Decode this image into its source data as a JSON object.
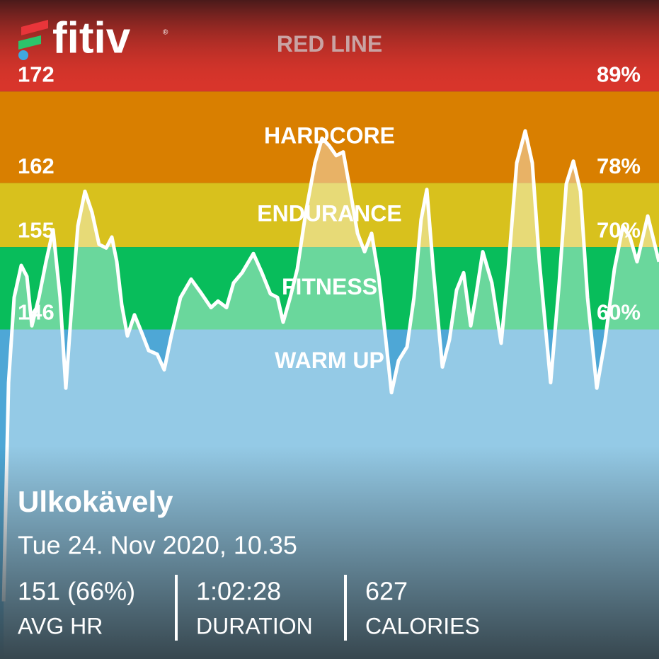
{
  "logo": {
    "text": "fitiv",
    "mark": "®"
  },
  "workout": {
    "title": "Ulkokävely",
    "date": "Tue 24. Nov 2020, 10.35",
    "stats": [
      {
        "value": "151 (66%)",
        "label": "AVG HR"
      },
      {
        "value": "1:02:28",
        "label": "DURATION"
      },
      {
        "value": "627",
        "label": "CALORIES"
      }
    ]
  },
  "chart_data": {
    "type": "line",
    "ylim": [
      110,
      182
    ],
    "xlim": [
      0,
      62.47
    ],
    "zones": [
      {
        "name": "RED LINE",
        "min": 172,
        "percent": {
          "value": 89,
          "label": "89%"
        },
        "color": "#d8352b"
      },
      {
        "name": "HARDCORE",
        "min": 162,
        "percent": {
          "value": 78,
          "label": "78%"
        },
        "color": "#d97f00"
      },
      {
        "name": "ENDURANCE",
        "min": 155,
        "percent": {
          "value": 70,
          "label": "70%"
        },
        "color": "#d8c11d"
      },
      {
        "name": "FITNESS",
        "min": 146,
        "percent": {
          "value": 60,
          "label": "60%"
        },
        "color": "#08bd5b"
      },
      {
        "name": "WARM UP",
        "color": "#4ea7d6"
      }
    ],
    "series": [
      {
        "color": "#ffffff",
        "x": [
          0.34,
          0.81,
          1.34,
          2.01,
          2.55,
          3.02,
          3.69,
          4.36,
          5.03,
          5.7,
          6.24,
          6.71,
          7.38,
          8.05,
          8.72,
          9.39,
          10.07,
          10.6,
          11.07,
          11.54,
          12.08,
          12.75,
          13.42,
          14.09,
          14.9,
          15.57,
          16.24,
          17.11,
          18.12,
          19.12,
          20.0,
          20.67,
          21.47,
          22.14,
          22.95,
          24.02,
          24.83,
          25.63,
          26.3,
          26.84,
          27.51,
          28.18,
          28.99,
          29.86,
          30.53,
          31.2,
          31.87,
          32.54,
          33.21,
          33.89,
          34.56,
          35.23,
          35.9,
          36.57,
          37.11,
          37.78,
          38.58,
          39.25,
          39.92,
          40.46,
          41.07,
          41.94,
          42.61,
          43.28,
          43.95,
          44.62,
          45.09,
          45.76,
          46.63,
          47.51,
          48.18,
          48.98,
          49.79,
          50.46,
          51.13,
          52.2,
          53.01,
          53.68,
          54.35,
          55.02,
          55.69,
          56.57,
          57.37,
          58.24,
          59.05,
          59.72,
          60.39,
          61.4,
          62.47
        ],
        "values": [
          116.3,
          140.2,
          149.5,
          153.0,
          151.8,
          146.4,
          149.5,
          153.4,
          156.9,
          149.5,
          139.6,
          147.2,
          157.3,
          161.1,
          158.8,
          155.3,
          154.9,
          156.1,
          153.4,
          148.7,
          145.3,
          147.6,
          145.7,
          143.7,
          143.3,
          141.6,
          145.3,
          149.5,
          151.5,
          149.9,
          148.4,
          149.1,
          148.4,
          151.1,
          152.2,
          154.3,
          152.2,
          149.9,
          149.5,
          146.8,
          149.5,
          152.6,
          158.8,
          164.2,
          166.9,
          166.1,
          165.0,
          165.4,
          161.1,
          156.5,
          154.5,
          156.5,
          151.8,
          144.9,
          139.1,
          142.6,
          144.1,
          149.5,
          158.0,
          161.3,
          152.6,
          141.9,
          144.9,
          150.3,
          152.2,
          146.4,
          149.5,
          154.5,
          151.1,
          144.5,
          152.6,
          164.2,
          167.7,
          164.2,
          153.4,
          140.2,
          151.1,
          161.9,
          164.4,
          161.1,
          149.5,
          139.6,
          144.9,
          152.6,
          157.3,
          156.1,
          153.4,
          158.4,
          153.4
        ]
      }
    ]
  }
}
